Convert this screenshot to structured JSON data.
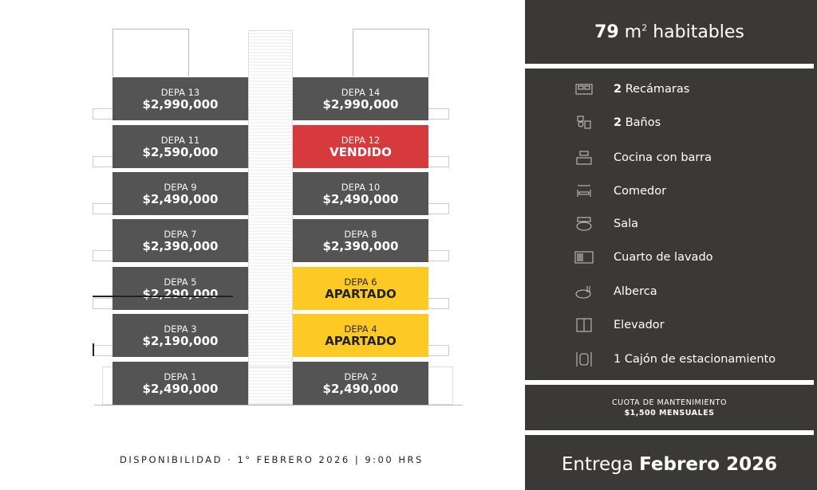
{
  "units": [
    {
      "name": "DEPA 13",
      "value": "$2,990,000",
      "status": "available"
    },
    {
      "name": "DEPA 14",
      "value": "$2,990,000",
      "status": "available"
    },
    {
      "name": "DEPA 11",
      "value": "$2,590,000",
      "status": "available"
    },
    {
      "name": "DEPA 12",
      "value": "VENDIDO",
      "status": "sold"
    },
    {
      "name": "DEPA 9",
      "value": "$2,490,000",
      "status": "available"
    },
    {
      "name": "DEPA 10",
      "value": "$2,490,000",
      "status": "available"
    },
    {
      "name": "DEPA 7",
      "value": "$2,390,000",
      "status": "available"
    },
    {
      "name": "DEPA 8",
      "value": "$2,390,000",
      "status": "available"
    },
    {
      "name": "DEPA 5",
      "value": "$2,290,000",
      "status": "available"
    },
    {
      "name": "DEPA 6",
      "value": "APARTADO",
      "status": "reserved"
    },
    {
      "name": "DEPA 3",
      "value": "$2,190,000",
      "status": "available"
    },
    {
      "name": "DEPA 4",
      "value": "APARTADO",
      "status": "reserved"
    },
    {
      "name": "DEPA 1",
      "value": "$2,490,000",
      "status": "available"
    },
    {
      "name": "DEPA 2",
      "value": "$2,490,000",
      "status": "available"
    }
  ],
  "colors": {
    "available": "#545454",
    "sold": "#d63a3c",
    "reserved": "#fcc925",
    "panel": "#3a3938"
  },
  "availability": "DISPONIBILIDAD · 1° FEBRERO 2026 | 9:00 HRS",
  "area": {
    "value": "79",
    "unit": "m",
    "sup": "2",
    "label": "habitables"
  },
  "features": [
    {
      "icon": "bed-icon",
      "bold": "2",
      "text": "Recámaras"
    },
    {
      "icon": "bathroom-icon",
      "bold": "2",
      "text": "Baños"
    },
    {
      "icon": "kitchen-icon",
      "bold": "",
      "text": "Cocina con barra"
    },
    {
      "icon": "dining-icon",
      "bold": "",
      "text": "Comedor"
    },
    {
      "icon": "sofa-icon",
      "bold": "",
      "text": "Sala"
    },
    {
      "icon": "laundry-icon",
      "bold": "",
      "text": "Cuarto de lavado"
    },
    {
      "icon": "pool-icon",
      "bold": "",
      "text": "Alberca"
    },
    {
      "icon": "elevator-icon",
      "bold": "",
      "text": "Elevador"
    },
    {
      "icon": "parking-icon",
      "bold": "",
      "text": "1 Cajón de estacionamiento"
    }
  ],
  "maintenance": {
    "label": "CUOTA DE MANTENIMIENTO",
    "value": "$1,500 MENSUALES"
  },
  "delivery": {
    "label": "Entrega",
    "value": "Febrero 2026"
  }
}
